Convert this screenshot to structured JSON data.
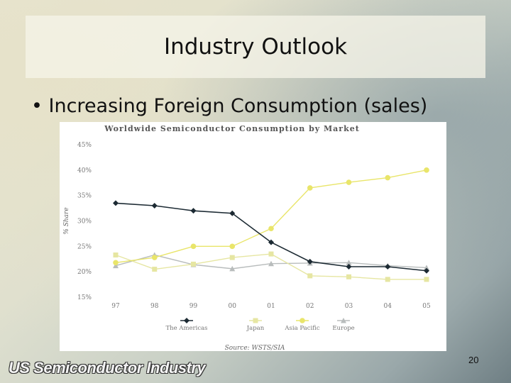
{
  "slide": {
    "title": "Industry Outlook",
    "bullet": "Increasing Foreign Consumption (sales)",
    "footer_logo": "US Semiconductor Industry",
    "page_number": "20"
  },
  "chart_data": {
    "type": "line",
    "title": "Worldwide Semiconductor Consumption by Market",
    "ylabel": "% Share",
    "xlabel": "",
    "source": "Source: WSTS/SIA",
    "categories": [
      "97",
      "98",
      "99",
      "00",
      "01",
      "02",
      "03",
      "04",
      "05"
    ],
    "yticks": [
      "45%",
      "40%",
      "35%",
      "30%",
      "25%",
      "20%",
      "15%"
    ],
    "ylim": [
      15,
      45
    ],
    "grid": false,
    "legend_position": "bottom",
    "series": [
      {
        "name": "The Americas",
        "color": "#1c2a33",
        "marker": "diamond",
        "values": [
          33.5,
          33,
          32,
          31.5,
          25.8,
          22,
          21,
          21,
          20.2
        ]
      },
      {
        "name": "Japan",
        "color": "#e6e6a2",
        "marker": "square",
        "values": [
          23.3,
          20.5,
          21.5,
          22.8,
          23.5,
          19.2,
          19,
          18.5,
          18.5
        ]
      },
      {
        "name": "Asia Pacific",
        "color": "#e9e56a",
        "marker": "circle",
        "values": [
          21.8,
          22.8,
          25,
          25,
          28.5,
          36.5,
          37.6,
          38.5,
          40
        ]
      },
      {
        "name": "Europe",
        "color": "#b8bcbc",
        "marker": "triangle",
        "values": [
          21.2,
          23.3,
          21.4,
          20.6,
          21.6,
          21.7,
          21.8,
          21.2,
          20.8
        ]
      }
    ]
  }
}
